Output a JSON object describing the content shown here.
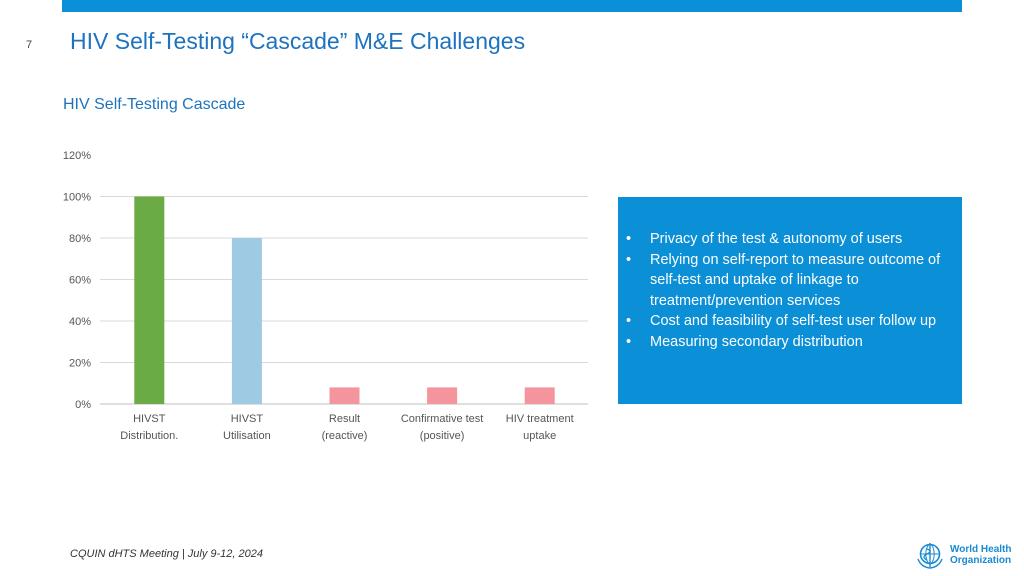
{
  "slide": {
    "number": "7",
    "title": "HIV Self-Testing “Cascade” M&E Challenges"
  },
  "chart_data": {
    "type": "bar",
    "title": "HIV Self-Testing Cascade",
    "categories": [
      [
        "HIVST",
        "Distribution."
      ],
      [
        "HIVST",
        "Utilisation"
      ],
      [
        "Result",
        "(reactive)"
      ],
      [
        "Confirmative test",
        "(positive)"
      ],
      [
        "HIV treatment",
        "uptake"
      ]
    ],
    "values": [
      100,
      80,
      8,
      8,
      8
    ],
    "bar_colors": [
      "#6aab45",
      "#9ecae3",
      "#f4959e",
      "#f4959e",
      "#f4959e"
    ],
    "ylim": [
      0,
      120
    ],
    "yticks": [
      0,
      20,
      40,
      60,
      80,
      100,
      120
    ],
    "ytick_labels": [
      "0%",
      "20%",
      "40%",
      "60%",
      "80%",
      "100%",
      "120%"
    ],
    "grid": true,
    "legend": "none"
  },
  "info_box": {
    "bullet": "•",
    "items": [
      "Privacy of the test & autonomy of users",
      "Relying on self-report to measure outcome of self-test and uptake of linkage to treatment/prevention services",
      "Cost and feasibility of self-test user follow up",
      "Measuring secondary distribution"
    ]
  },
  "footer": {
    "text": "CQUIN dHTS Meeting | July 9-12, 2024"
  },
  "logo": {
    "icon": "who-emblem-icon",
    "line1": "World Health",
    "line2": "Organization",
    "color": "#1a8ad0"
  },
  "colors": {
    "accent": "#0b8fd6",
    "title": "#1e73be"
  }
}
